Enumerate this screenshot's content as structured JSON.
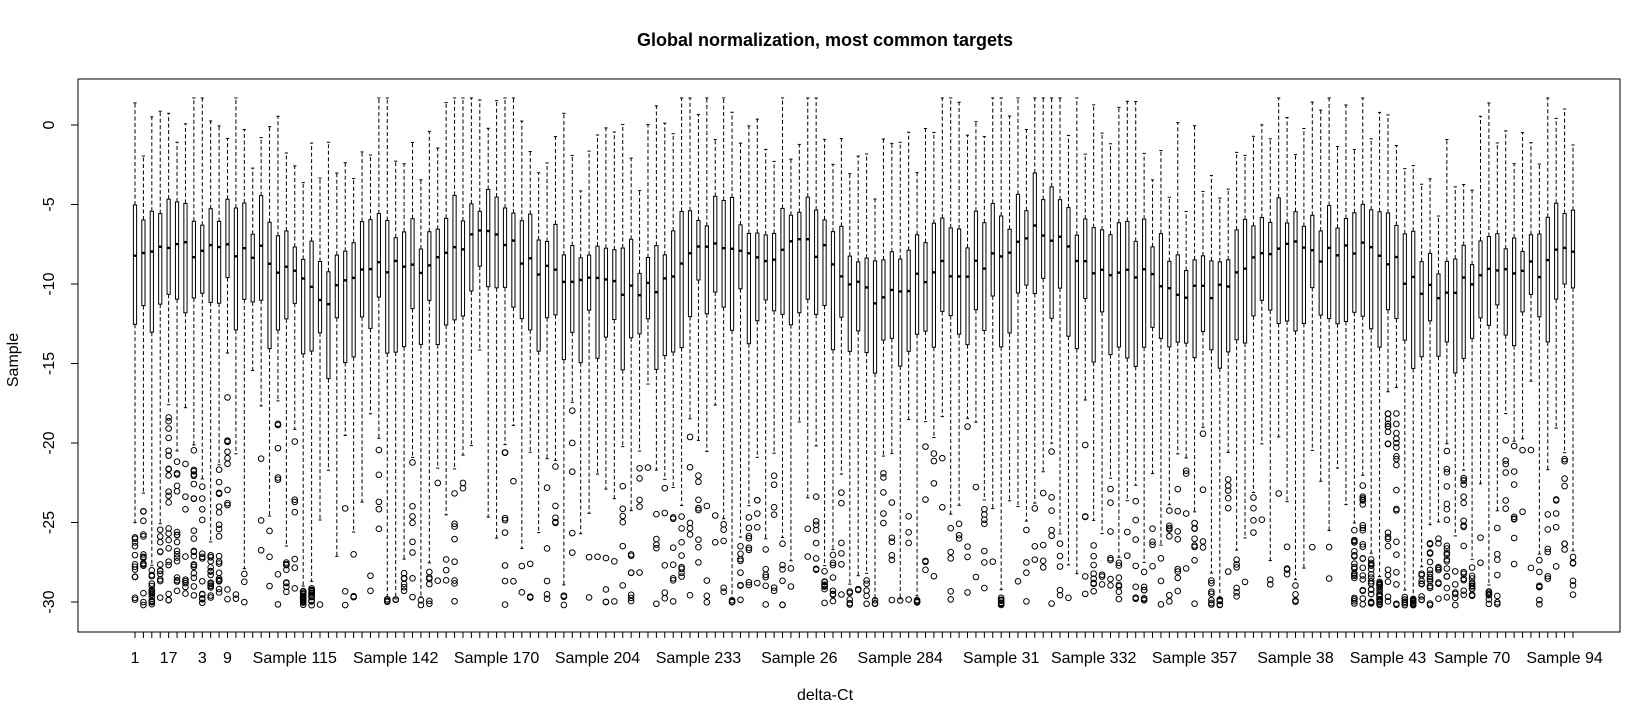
{
  "chart_data": {
    "type": "boxplot",
    "title": "Global normalization, most common targets",
    "xlabel": "delta-Ct",
    "ylabel": "Sample",
    "ylim": [
      -31.5,
      3.0
    ],
    "yticks": [
      0,
      -5,
      -10,
      -15,
      -20,
      -25,
      -30
    ],
    "n_boxes": 172,
    "grid": false,
    "legend": "none",
    "x_tick_labels": [
      "1",
      "17",
      "3",
      "9",
      "Sample 115",
      "Sample 142",
      "Sample 170",
      "Sample 204",
      "Sample 233",
      "Sample 26",
      "Sample 284",
      "Sample 31",
      "Sample 332",
      "Sample 357",
      "Sample 38",
      "Sample 43",
      "Sample 70",
      "Sample 94"
    ],
    "x_tick_label_positions": [
      1,
      5,
      9,
      12,
      20,
      32,
      44,
      56,
      68,
      80,
      92,
      104,
      115,
      127,
      139,
      150,
      160,
      171
    ],
    "summary": {
      "median_range": [
        -10.5,
        -7.0
      ],
      "upper_whisker_max": 1.7,
      "lower_whisker_min": -29.8,
      "outlier_range": [
        -30.2,
        -16.4
      ]
    },
    "colors": {
      "stroke": "#000000",
      "background": "#ffffff"
    }
  }
}
